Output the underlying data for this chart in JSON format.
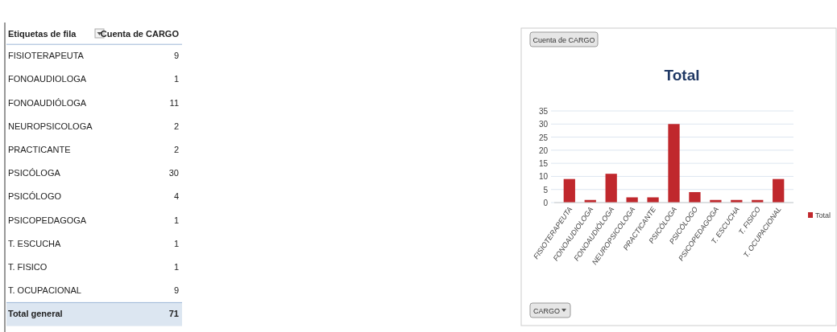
{
  "chart_data": [
    {
      "type": "other",
      "categories": [
        "FISIOTERAPEUTA",
        "FONOAUDIOLOGA",
        "FONOAUDIÓLOGA",
        "NEUROPSICOLOGA",
        "PRACTICANTE",
        "PSICÓLOGA",
        "PSICÓLOGO",
        "PSICOPEDAGOGA",
        "T. ESCUCHA",
        "T. FISICO",
        "T. OCUPACIONAL"
      ],
      "value_labels": [
        "9",
        "1",
        "11",
        "2",
        "2",
        "30",
        "4",
        "1",
        "1",
        "1",
        "9"
      ],
      "annotations": [
        "Etiquetas de fila",
        "Cuenta de CARGO",
        "Total general",
        "71"
      ]
    },
    {
      "type": "bar",
      "title": "Total",
      "categories": [
        "FISIOTERAPEUTA",
        "FONOAUDIOLOGA",
        "FONOAUDIÓLOGA",
        "NEUROPSICOLOGA",
        "PRACTICANTE",
        "PSICÓLOGA",
        "PSICÓLOGO",
        "PSICOPEDAGOGA",
        "T. ESCUCHA",
        "T. FISICO",
        "T. OCUPACIONAL"
      ],
      "series": [
        {
          "name": "Total",
          "color": "#c0282d",
          "values": [
            9,
            1,
            11,
            2,
            2,
            30,
            4,
            1,
            1,
            1,
            9
          ]
        }
      ],
      "ylim": [
        0,
        35
      ],
      "yticks": [
        0,
        5,
        10,
        15,
        20,
        25,
        30,
        35
      ],
      "grid": "y",
      "legend": "right",
      "annotations": [
        "Cuenta de CARGO",
        "CARGO"
      ]
    }
  ]
}
